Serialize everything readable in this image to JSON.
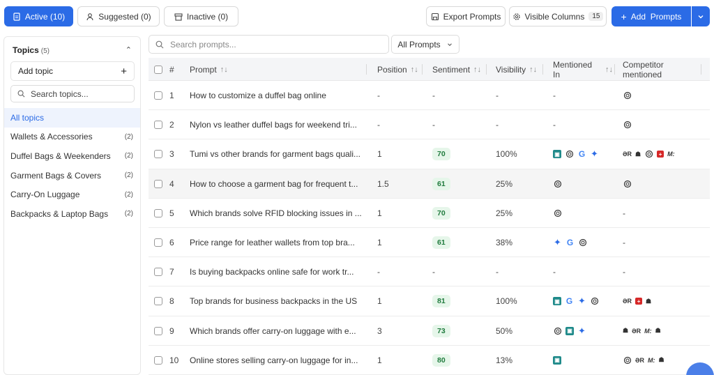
{
  "tabs": {
    "active": "Active (10)",
    "suggested": "Suggested (0)",
    "inactive": "Inactive (0)"
  },
  "toolbar": {
    "export": "Export Prompts",
    "visible_columns": "Visible Columns",
    "visible_count": "15",
    "add": "Add  Prompts"
  },
  "sidebar": {
    "title": "Topics",
    "count": "(5)",
    "add_topic": "Add topic",
    "search_placeholder": "Search topics...",
    "items": [
      {
        "label": "All topics",
        "count": ""
      },
      {
        "label": "Wallets & Accessories",
        "count": "(2)"
      },
      {
        "label": "Duffel Bags & Weekenders",
        "count": "(2)"
      },
      {
        "label": "Garment Bags & Covers",
        "count": "(2)"
      },
      {
        "label": "Carry-On Luggage",
        "count": "(2)"
      },
      {
        "label": "Backpacks & Laptop Bags",
        "count": "(2)"
      }
    ]
  },
  "search": {
    "placeholder": "Search prompts..."
  },
  "filter": {
    "label": "All Prompts"
  },
  "table": {
    "columns": {
      "num": "#",
      "prompt": "Prompt",
      "position": "Position",
      "sentiment": "Sentiment",
      "visibility": "Visibility",
      "mentioned": "Mentioned In",
      "competitor": "Competitor mentioned"
    },
    "rows": [
      {
        "num": "1",
        "prompt": "How to customize a duffel bag online",
        "position": "-",
        "sentiment": "-",
        "visibility": "-",
        "mentioned": [],
        "mentioned_text": "-",
        "competitors": [
          "openai"
        ],
        "competitor_text": ""
      },
      {
        "num": "2",
        "prompt": "Nylon vs leather duffel bags for weekend tri...",
        "position": "-",
        "sentiment": "-",
        "visibility": "-",
        "mentioned": [],
        "mentioned_text": "-",
        "competitors": [
          "openai"
        ],
        "competitor_text": ""
      },
      {
        "num": "3",
        "prompt": "Tumi vs other brands for garment bags quali...",
        "position": "1",
        "sentiment": "70",
        "visibility": "100%",
        "mentioned": [
          "teal",
          "openai",
          "google",
          "gemini"
        ],
        "mentioned_text": "",
        "competitors": [
          "AR",
          "bug",
          "openai",
          "swiss",
          "M"
        ],
        "competitor_text": ""
      },
      {
        "num": "4",
        "prompt": "How to choose a garment bag for frequent t...",
        "position": "1.5",
        "sentiment": "61",
        "visibility": "25%",
        "mentioned": [
          "openai"
        ],
        "mentioned_text": "",
        "competitors": [
          "openai"
        ],
        "competitor_text": ""
      },
      {
        "num": "5",
        "prompt": "Which brands solve RFID blocking issues in ...",
        "position": "1",
        "sentiment": "70",
        "visibility": "25%",
        "mentioned": [
          "openai"
        ],
        "mentioned_text": "",
        "competitors": [],
        "competitor_text": "-"
      },
      {
        "num": "6",
        "prompt": "Price range for leather wallets from top bra...",
        "position": "1",
        "sentiment": "61",
        "visibility": "38%",
        "mentioned": [
          "gemini",
          "google",
          "openai"
        ],
        "mentioned_text": "",
        "competitors": [],
        "competitor_text": "-"
      },
      {
        "num": "7",
        "prompt": "Is buying backpacks online safe for work tr...",
        "position": "-",
        "sentiment": "-",
        "visibility": "-",
        "mentioned": [],
        "mentioned_text": "-",
        "competitors": [],
        "competitor_text": "-"
      },
      {
        "num": "8",
        "prompt": "Top brands for business backpacks in the US",
        "position": "1",
        "sentiment": "81",
        "visibility": "100%",
        "mentioned": [
          "teal",
          "google",
          "gemini",
          "openai"
        ],
        "mentioned_text": "",
        "competitors": [
          "AR",
          "swiss",
          "bug"
        ],
        "competitor_text": ""
      },
      {
        "num": "9",
        "prompt": "Which brands offer carry-on luggage with e...",
        "position": "3",
        "sentiment": "73",
        "visibility": "50%",
        "mentioned": [
          "openai",
          "teal",
          "gemini"
        ],
        "mentioned_text": "",
        "competitors": [
          "bug",
          "AR",
          "M",
          "bug"
        ],
        "competitor_text": ""
      },
      {
        "num": "10",
        "prompt": "Online stores selling carry-on luggage for in...",
        "position": "1",
        "sentiment": "80",
        "visibility": "13%",
        "mentioned": [
          "teal"
        ],
        "mentioned_text": "",
        "competitors": [
          "openai",
          "AR",
          "M",
          "bug"
        ],
        "competitor_text": ""
      }
    ]
  }
}
